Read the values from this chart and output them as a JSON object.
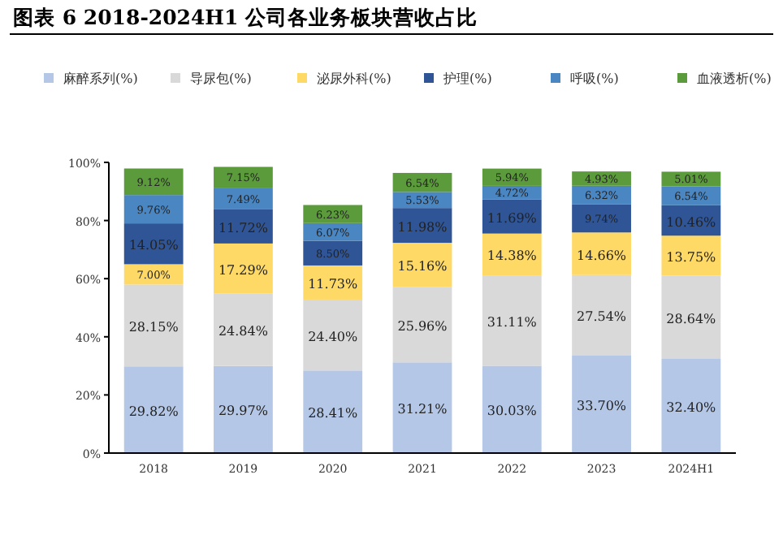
{
  "chart_data": {
    "type": "bar",
    "stacked": true,
    "title": "图表 6 2018-2024H1 公司各业务板块营收占比",
    "categories": [
      "2018",
      "2019",
      "2020",
      "2021",
      "2022",
      "2023",
      "2024H1"
    ],
    "series": [
      {
        "name": "麻醉系列(%)",
        "color": "#b4c7e7",
        "values": [
          29.82,
          29.97,
          28.41,
          31.21,
          30.03,
          33.7,
          32.4
        ],
        "value_labels": [
          "29.82%",
          "29.97%",
          "28.41%",
          "31.21%",
          "30.03%",
          "33.70%",
          "32.40%"
        ]
      },
      {
        "name": "导尿包(%)",
        "color": "#d9d9d9",
        "values": [
          28.15,
          24.84,
          24.4,
          25.96,
          31.11,
          27.54,
          28.64
        ],
        "value_labels": [
          "28.15%",
          "24.84%",
          "24.40%",
          "25.96%",
          "31.11%",
          "27.54%",
          "28.64%"
        ]
      },
      {
        "name": "泌尿外科(%)",
        "color": "#ffd966",
        "values": [
          7.0,
          17.29,
          11.73,
          15.16,
          14.38,
          14.66,
          13.75
        ],
        "value_labels": [
          "7.00%",
          "17.29%",
          "11.73%",
          "15.16%",
          "14.38%",
          "14.66%",
          "13.75%"
        ]
      },
      {
        "name": "护理(%)",
        "color": "#2f5597",
        "values": [
          14.05,
          11.72,
          8.5,
          11.98,
          11.69,
          9.74,
          10.46
        ],
        "value_labels": [
          "14.05%",
          "11.72%",
          "8.50%",
          "11.98%",
          "11.69%",
          "9.74%",
          "10.46%"
        ]
      },
      {
        "name": "呼吸(%)",
        "color": "#4a86c2",
        "values": [
          9.76,
          7.49,
          6.07,
          5.53,
          4.72,
          6.32,
          6.54
        ],
        "value_labels": [
          "9.76%",
          "7.49%",
          "6.07%",
          "5.53%",
          "4.72%",
          "6.32%",
          "6.54%"
        ]
      },
      {
        "name": "血液透析(%)",
        "color": "#5b9b3c",
        "values": [
          9.12,
          7.15,
          6.23,
          6.54,
          5.94,
          4.93,
          5.01
        ],
        "value_labels": [
          "9.12%",
          "7.15%",
          "6.23%",
          "6.54%",
          "5.94%",
          "4.93%",
          "5.01%"
        ]
      }
    ],
    "ylim": [
      0,
      100
    ],
    "yticks": [
      {
        "value": 0,
        "label": "0%"
      },
      {
        "value": 20,
        "label": "20%"
      },
      {
        "value": 40,
        "label": "40%"
      },
      {
        "value": 60,
        "label": "60%"
      },
      {
        "value": 80,
        "label": "80%"
      },
      {
        "value": 100,
        "label": "100%"
      }
    ],
    "grid": false,
    "legend": "top"
  }
}
